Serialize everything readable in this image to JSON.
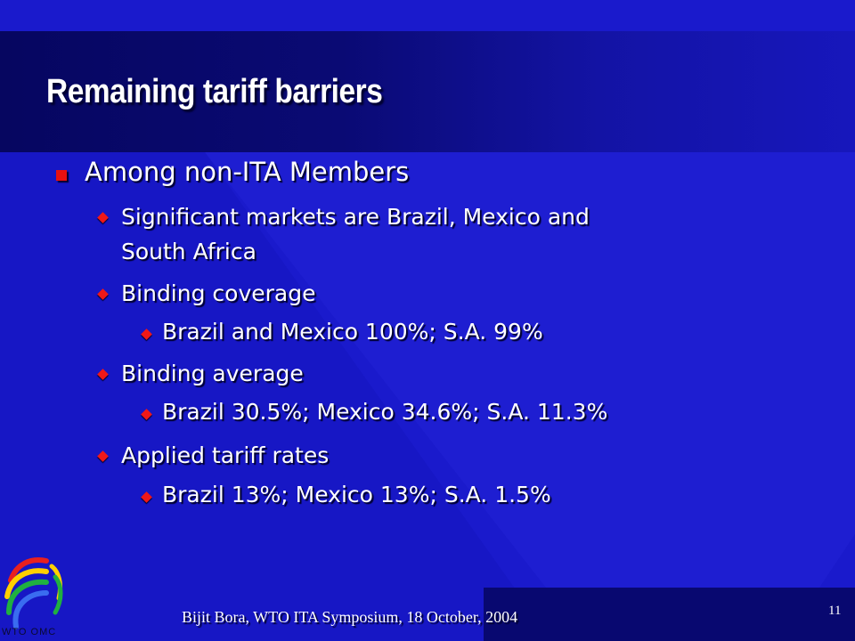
{
  "slide": {
    "title": "Remaining tariff barriers",
    "level1": "Among non-ITA Members",
    "bullets": [
      {
        "line1": "Significant markets are Brazil, Mexico and",
        "line2": "South Africa"
      },
      {
        "text": "Binding coverage",
        "sub": "Brazil and Mexico 100%; S.A. 99%"
      },
      {
        "text": "Binding average",
        "sub": "Brazil 30.5%; Mexico 34.6%; S.A. 11.3%"
      },
      {
        "text": "Applied tariff rates",
        "sub": "Brazil 13%; Mexico 13%; S.A. 1.5%"
      }
    ]
  },
  "footer": {
    "text": "Bijit Bora, WTO ITA Symposium, 18 October, 2004",
    "slide_number": "11"
  },
  "logo": {
    "text": "WTO OMC"
  },
  "colors": {
    "background": "#1a1acc",
    "title_band": "#060660",
    "bullet": "#e81010",
    "text": "#ffffff"
  }
}
